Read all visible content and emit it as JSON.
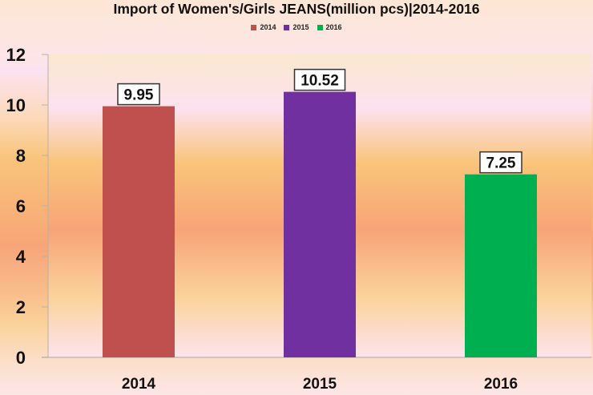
{
  "chart_data": {
    "type": "bar",
    "title": "Import of Women's/Girls JEANS(million pcs)|2014-2016",
    "xlabel": "",
    "ylabel": "",
    "categories": [
      "2014",
      "2015",
      "2016"
    ],
    "values": [
      9.95,
      10.52,
      7.25
    ],
    "data_labels": [
      "9.95",
      "10.52",
      "7.25"
    ],
    "colors": [
      "#c0504d",
      "#7030a0",
      "#00b050"
    ],
    "legend": {
      "position": "top",
      "entries": [
        {
          "label": "2014",
          "color": "#c0504d"
        },
        {
          "label": "2015",
          "color": "#7030a0"
        },
        {
          "label": "2016",
          "color": "#00b050"
        }
      ]
    },
    "ylim": [
      0,
      12
    ],
    "yticks": [
      0,
      2,
      4,
      6,
      8,
      10,
      12
    ],
    "grid": false
  }
}
